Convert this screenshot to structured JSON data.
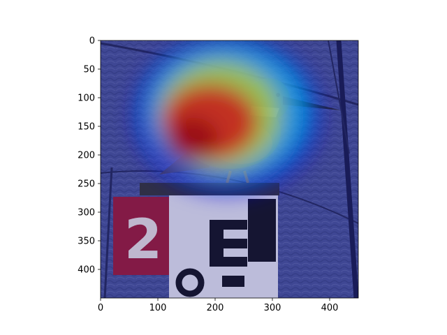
{
  "figure": {
    "scene": "bird-on-numbered-post",
    "overlay": "attention-heatmap-jet",
    "colormap": [
      "#00007f",
      "#0000ff",
      "#00ffff",
      "#ffff00",
      "#ff0000",
      "#7f0000"
    ]
  },
  "axes": {
    "xlim": [
      0,
      450
    ],
    "ylim": [
      450,
      0
    ],
    "x_ticks": [
      {
        "value": 0,
        "label": "0"
      },
      {
        "value": 100,
        "label": "100"
      },
      {
        "value": 200,
        "label": "200"
      },
      {
        "value": 300,
        "label": "300"
      },
      {
        "value": 400,
        "label": "400"
      }
    ],
    "y_ticks": [
      {
        "value": 0,
        "label": "0"
      },
      {
        "value": 50,
        "label": "50"
      },
      {
        "value": 100,
        "label": "100"
      },
      {
        "value": 150,
        "label": "150"
      },
      {
        "value": 200,
        "label": "200"
      },
      {
        "value": 250,
        "label": "250"
      },
      {
        "value": 300,
        "label": "300"
      },
      {
        "value": 350,
        "label": "350"
      },
      {
        "value": 400,
        "label": "400"
      }
    ]
  },
  "sign": {
    "number": "2"
  }
}
